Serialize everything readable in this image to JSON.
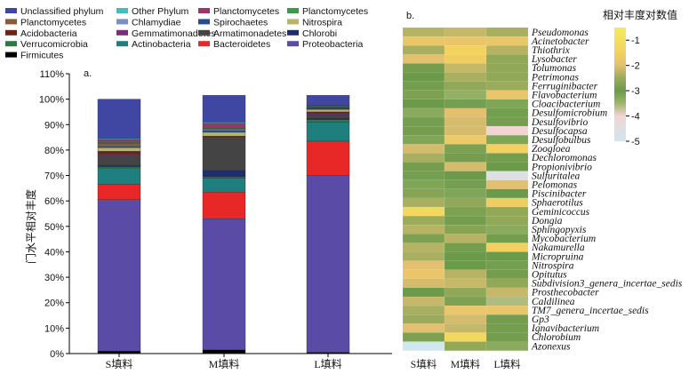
{
  "chart_data": [
    {
      "panel_label": "a.",
      "type": "bar",
      "stacked": true,
      "ylabel": "门水平相对丰度",
      "ylim": [
        0,
        110
      ],
      "yticks": [
        0,
        10,
        20,
        30,
        40,
        50,
        60,
        70,
        80,
        90,
        100,
        110
      ],
      "ytick_suffix": "%",
      "categories": [
        "S填料",
        "M填料",
        "L填料"
      ],
      "legend": [
        {
          "name": "Unclassified phylum",
          "color": "#3f47a3"
        },
        {
          "name": "Other Phylum",
          "color": "#3fbfbf"
        },
        {
          "name": "Planctomycetes",
          "color": "#a0336c"
        },
        {
          "name": "Planctomycetes",
          "color": "#3c9a4a"
        },
        {
          "name": "Planctomycetes",
          "color": "#8a5a3c"
        },
        {
          "name": "Chlamydiae",
          "color": "#7a8fc6"
        },
        {
          "name": "Spirochaetes",
          "color": "#274c8f"
        },
        {
          "name": "Nitrospira",
          "color": "#b7b56b"
        },
        {
          "name": "Acidobacteria",
          "color": "#6b2416"
        },
        {
          "name": "Gemmatimonadetes",
          "color": "#7b2c7b"
        },
        {
          "name": "Armatimonadetes",
          "color": "#444444"
        },
        {
          "name": "Chlorobi",
          "color": "#1f2d6b"
        },
        {
          "name": "Verrucomicrobia",
          "color": "#2e7a46"
        },
        {
          "name": "Actinobacteria",
          "color": "#1f7f7f"
        },
        {
          "name": "Bacteroidetes",
          "color": "#e82727"
        },
        {
          "name": "Proteobacteria",
          "color": "#5a4ba6"
        },
        {
          "name": "Firmicutes",
          "color": "#000000"
        }
      ],
      "series": [
        {
          "name": "Firmicutes",
          "color": "#000000",
          "values": [
            1.0,
            1.5,
            0.5
          ]
        },
        {
          "name": "Proteobacteria",
          "color": "#5a4ba6",
          "values": [
            59.5,
            51.5,
            69.5
          ]
        },
        {
          "name": "Bacteroidetes",
          "color": "#e82727",
          "values": [
            6.0,
            10.5,
            13.5
          ]
        },
        {
          "name": "Actinobacteria",
          "color": "#1f7f7f",
          "values": [
            6.5,
            5.5,
            7.5
          ]
        },
        {
          "name": "Verrucomicrobia",
          "color": "#2e7a46",
          "values": [
            0.5,
            0.5,
            1.0
          ]
        },
        {
          "name": "Chlorobi",
          "color": "#1f2d6b",
          "values": [
            0.5,
            2.5,
            0.5
          ]
        },
        {
          "name": "Armatimonadetes",
          "color": "#444444",
          "values": [
            4.0,
            12.5,
            1.5
          ]
        },
        {
          "name": "Gemmatimonadetes",
          "color": "#7b2c7b",
          "values": [
            0.5,
            0.5,
            0.5
          ]
        },
        {
          "name": "Acidobacteria",
          "color": "#6b2416",
          "values": [
            1.0,
            0.5,
            0.5
          ]
        },
        {
          "name": "Nitrospira",
          "color": "#b7b56b",
          "values": [
            1.5,
            1.5,
            1.0
          ]
        },
        {
          "name": "Spirochaetes",
          "color": "#274c8f",
          "values": [
            0.5,
            0.5,
            0.3
          ]
        },
        {
          "name": "Chlamydiae",
          "color": "#7a8fc6",
          "values": [
            0.5,
            0.5,
            0.2
          ]
        },
        {
          "name": "Planctomycetes",
          "color": "#8a5a3c",
          "values": [
            0.5,
            0.5,
            0.2
          ]
        },
        {
          "name": "Planctomycetes",
          "color": "#3c9a4a",
          "values": [
            0.5,
            0.5,
            0.3
          ]
        },
        {
          "name": "Planctomycetes",
          "color": "#a0336c",
          "values": [
            1.0,
            1.5,
            0.3
          ]
        },
        {
          "name": "Other Phylum",
          "color": "#3fbfbf",
          "values": [
            0.5,
            0.5,
            0.2
          ]
        },
        {
          "name": "Unclassified phylum",
          "color": "#3f47a3",
          "values": [
            15.5,
            10.5,
            4.0
          ]
        }
      ]
    },
    {
      "panel_label": "b.",
      "type": "heatmap",
      "colorbar_title": "相对丰度对数值",
      "colorbar_range": [
        -5,
        -0.5
      ],
      "colorbar_ticks": [
        "-1",
        "-2",
        "-3",
        "-4",
        "-5"
      ],
      "colorscale": [
        {
          "v": -5.0,
          "c": "#cfe8ef"
        },
        {
          "v": -4.0,
          "c": "#f2d4d4"
        },
        {
          "v": -3.5,
          "c": "#9fb56a"
        },
        {
          "v": -3.0,
          "c": "#6a9a4a"
        },
        {
          "v": -2.5,
          "c": "#9aab5c"
        },
        {
          "v": -2.0,
          "c": "#e2c070"
        },
        {
          "v": -1.5,
          "c": "#f3d060"
        },
        {
          "v": -0.5,
          "c": "#f4ec5c"
        }
      ],
      "columns": [
        "S填料",
        "M填料",
        "L填料"
      ],
      "rows": [
        {
          "genus": "Pseudomonas",
          "values": [
            -2.3,
            -2.2,
            -2.4
          ]
        },
        {
          "genus": "Acinetobacter",
          "values": [
            -1.8,
            -1.8,
            -1.8
          ]
        },
        {
          "genus": "Thiothrix",
          "values": [
            -2.4,
            -1.4,
            -2.3
          ]
        },
        {
          "genus": "Lysobacter",
          "values": [
            -2.0,
            -1.6,
            -2.6
          ]
        },
        {
          "genus": "Tolumonas",
          "values": [
            -2.9,
            -2.2,
            -2.6
          ]
        },
        {
          "genus": "Petrimonas",
          "values": [
            -3.0,
            -2.4,
            -2.6
          ]
        },
        {
          "genus": "Ferruginibacter",
          "values": [
            -2.9,
            -2.6,
            -2.5
          ]
        },
        {
          "genus": "Flavobacterium",
          "values": [
            -2.8,
            -3.4,
            -1.8
          ]
        },
        {
          "genus": "Cloacibacterium",
          "values": [
            -3.0,
            -3.1,
            -3.2
          ]
        },
        {
          "genus": "Desulfomicrobium",
          "values": [
            -3.3,
            -2.0,
            -3.1
          ]
        },
        {
          "genus": "Desulfovibrio",
          "values": [
            -3.1,
            -2.1,
            -3.1
          ]
        },
        {
          "genus": "Desulfocapsa",
          "values": [
            -2.9,
            -2.1,
            -4.0
          ]
        },
        {
          "genus": "Desulfobulbus",
          "values": [
            -3.2,
            -1.7,
            -3.2
          ]
        },
        {
          "genus": "Zoogloea",
          "values": [
            -2.1,
            -2.8,
            -1.5
          ]
        },
        {
          "genus": "Dechloromonas",
          "values": [
            -2.4,
            -2.9,
            -2.9
          ]
        },
        {
          "genus": "Propionivibrio",
          "values": [
            -2.9,
            -2.1,
            -3.0
          ]
        },
        {
          "genus": "Sulfuritalea",
          "values": [
            -3.1,
            -3.0,
            -4.6
          ]
        },
        {
          "genus": "Pelomonas",
          "values": [
            -3.2,
            -3.1,
            -2.0
          ]
        },
        {
          "genus": "Piscinibacter",
          "values": [
            -2.7,
            -3.2,
            -3.0
          ]
        },
        {
          "genus": "Sphaerotilus",
          "values": [
            -2.4,
            -2.6,
            -1.6
          ]
        },
        {
          "genus": "Geminicoccus",
          "values": [
            -1.2,
            -2.8,
            -2.6
          ]
        },
        {
          "genus": "Dongia",
          "values": [
            -2.5,
            -2.9,
            -2.6
          ]
        },
        {
          "genus": "Sphingopyxis",
          "values": [
            -2.3,
            -2.7,
            -3.3
          ]
        },
        {
          "genus": "Mycobacterium",
          "values": [
            -2.8,
            -2.3,
            -2.9
          ]
        },
        {
          "genus": "Nakamurella",
          "values": [
            -2.3,
            -2.9,
            -1.5
          ]
        },
        {
          "genus": "Micropruina",
          "values": [
            -2.4,
            -3.0,
            -3.0
          ]
        },
        {
          "genus": "Nitrospira",
          "values": [
            -2.0,
            -3.0,
            -3.1
          ]
        },
        {
          "genus": "Opitutus",
          "values": [
            -1.8,
            -2.3,
            -2.9
          ]
        },
        {
          "genus": "Subdivision3_genera_incertae_sedis",
          "values": [
            -2.1,
            -2.2,
            -2.6
          ]
        },
        {
          "genus": "Prosthecobacter",
          "values": [
            -3.0,
            -2.6,
            -2.2
          ]
        },
        {
          "genus": "Caldilinea",
          "values": [
            -2.2,
            -2.8,
            -3.6
          ]
        },
        {
          "genus": "TM7_genera_incertae_sedis",
          "values": [
            -2.4,
            -1.8,
            -1.8
          ]
        },
        {
          "genus": "Gp3",
          "values": [
            -2.5,
            -2.1,
            -2.9
          ]
        },
        {
          "genus": "Ignavibacterium",
          "values": [
            -2.0,
            -2.2,
            -2.9
          ]
        },
        {
          "genus": "Chlorobium",
          "values": [
            -2.8,
            -1.2,
            -2.9
          ]
        },
        {
          "genus": "Azonexus",
          "values": [
            -5.0,
            -2.6,
            -3.3
          ]
        }
      ]
    }
  ]
}
